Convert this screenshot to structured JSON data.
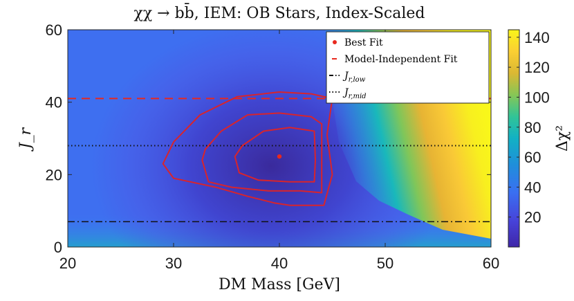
{
  "chart_data": {
    "type": "heatmap",
    "title": "χχ → bb̄, IEM: OB Stars, Index-Scaled",
    "xlabel": "DM Mass [GeV]",
    "ylabel": "J_r",
    "xlim": [
      20,
      60
    ],
    "ylim": [
      0,
      60
    ],
    "x_ticks": [
      "20",
      "30",
      "40",
      "50",
      "60"
    ],
    "y_ticks": [
      "0",
      "20",
      "40",
      "60"
    ],
    "colorbar": {
      "label": "Δχ²",
      "range": [
        0,
        145
      ],
      "ticks": [
        "20",
        "40",
        "60",
        "80",
        "100",
        "120",
        "140"
      ],
      "colors": [
        "#3e26a8",
        "#4743d9",
        "#3a6ff1",
        "#1f8fda",
        "#12b1c4",
        "#31c497",
        "#86c656",
        "#dbb833",
        "#fbcf33",
        "#f9f41a"
      ]
    },
    "best_fit": {
      "x": 40,
      "y": 25
    },
    "model_independent_fit_y": 41,
    "jr_low_y": 7,
    "jr_mid_y": 28,
    "contours": [
      {
        "name": "inner",
        "points": [
          [
            35.8,
            25
          ],
          [
            36.2,
            20.5
          ],
          [
            38,
            18.5
          ],
          [
            41,
            18
          ],
          [
            43.3,
            18
          ],
          [
            43.4,
            24
          ],
          [
            43.3,
            32
          ],
          [
            41,
            33
          ],
          [
            38.5,
            32
          ],
          [
            36.5,
            28
          ],
          [
            35.8,
            25
          ]
        ]
      },
      {
        "name": "middle",
        "points": [
          [
            32.7,
            24
          ],
          [
            33.3,
            18
          ],
          [
            35.5,
            16.5
          ],
          [
            39,
            15.5
          ],
          [
            42,
            15.5
          ],
          [
            44,
            15
          ],
          [
            44,
            24
          ],
          [
            44,
            34
          ],
          [
            43,
            36
          ],
          [
            40,
            37
          ],
          [
            37,
            36.5
          ],
          [
            34.5,
            32
          ],
          [
            33,
            27
          ],
          [
            32.7,
            24
          ]
        ]
      },
      {
        "name": "outer",
        "points": [
          [
            29,
            23
          ],
          [
            30,
            19
          ],
          [
            34,
            16.5
          ],
          [
            37,
            14
          ],
          [
            39.5,
            12.2
          ],
          [
            41,
            11.5
          ],
          [
            44.2,
            11.5
          ],
          [
            45,
            20
          ],
          [
            44.5,
            31
          ],
          [
            45,
            41
          ],
          [
            43,
            42.3
          ],
          [
            40,
            42.8
          ],
          [
            36,
            41.5
          ],
          [
            32.5,
            36.5
          ],
          [
            30,
            29
          ],
          [
            29,
            23
          ]
        ]
      }
    ],
    "legend": [
      {
        "label": "Best Fit",
        "color": "#e8281e",
        "style": "dot"
      },
      {
        "label": "Model-Independent Fit",
        "color": "#e8281e",
        "style": "dash"
      },
      {
        "label": "J_r,low",
        "color": "#000000",
        "style": "dashdot"
      },
      {
        "label": "J_r,mid",
        "color": "#000000",
        "style": "dotted"
      }
    ]
  }
}
